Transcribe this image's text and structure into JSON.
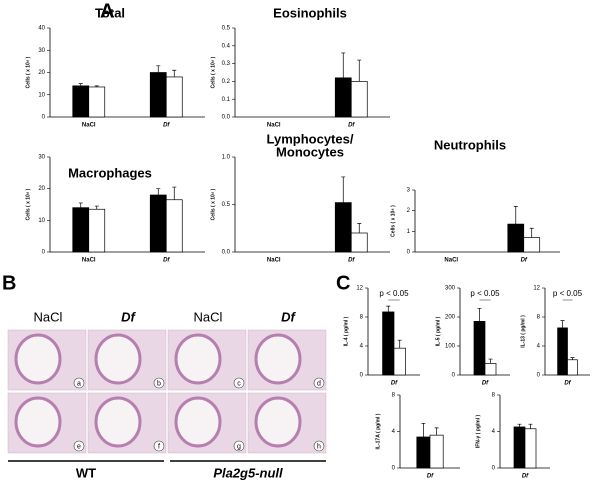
{
  "panel_labels": [
    "A",
    "B",
    "C"
  ],
  "micrographs": {
    "column_labels": [
      "NaCl",
      "Df",
      "NaCl",
      "Df"
    ],
    "letters": [
      "a",
      "b",
      "c",
      "d",
      "e",
      "f",
      "g",
      "h"
    ],
    "group_labels": [
      "WT",
      "Pla2g5-null"
    ]
  },
  "chart_data": [
    {
      "type": "bar",
      "title": [
        "Total"
      ],
      "ylabel": "Cells ( x 10⁴ )",
      "categories": [
        "NaCl",
        "Df"
      ],
      "ylim": [
        0,
        40
      ],
      "yticks": [
        0,
        10,
        20,
        30,
        40
      ],
      "series": [
        {
          "color": "#000000",
          "values": [
            14,
            20
          ],
          "errors": [
            1,
            3
          ]
        },
        {
          "color": "#ffffff",
          "values": [
            13.5,
            18
          ],
          "errors": [
            0.5,
            3
          ]
        }
      ]
    },
    {
      "type": "bar",
      "title": [
        "Eosinophils"
      ],
      "ylabel": "Cells ( x 10⁴ )",
      "categories": [
        "NaCl",
        "Df"
      ],
      "ylim": [
        0,
        0.5
      ],
      "yticks": [
        {
          "value": 0,
          "label": "0.0"
        },
        0.1,
        0.2,
        0.3,
        0.4,
        0.5
      ],
      "series": [
        {
          "color": "#000000",
          "values": [
            0,
            0.22
          ],
          "errors": [
            0,
            0.14
          ]
        },
        {
          "color": "#ffffff",
          "values": [
            0,
            0.2
          ],
          "errors": [
            0,
            0.12
          ]
        }
      ]
    },
    {
      "type": "bar",
      "title": [
        "Macrophages"
      ],
      "ylabel": "Cells ( x 10⁴ )",
      "categories": [
        "NaCl",
        "Df"
      ],
      "ylim": [
        0,
        30
      ],
      "yticks": [
        0,
        10,
        20,
        30
      ],
      "series": [
        {
          "color": "#000000",
          "values": [
            14,
            18
          ],
          "errors": [
            1.5,
            2
          ]
        },
        {
          "color": "#ffffff",
          "values": [
            13.5,
            16.5
          ],
          "errors": [
            1,
            4
          ]
        }
      ]
    },
    {
      "type": "bar",
      "title": [
        "Lymphocytes/",
        "Monocytes"
      ],
      "ylabel": "Cells ( x 10⁴ )",
      "categories": [
        "NaCl",
        "Df"
      ],
      "ylim": [
        0,
        1
      ],
      "yticks": [
        {
          "value": 0,
          "label": "0.0"
        },
        0.5,
        {
          "value": 1,
          "label": "1.0"
        }
      ],
      "series": [
        {
          "color": "#000000",
          "values": [
            0,
            0.52
          ],
          "errors": [
            0,
            0.27
          ]
        },
        {
          "color": "#ffffff",
          "values": [
            0,
            0.2
          ],
          "errors": [
            0,
            0.1
          ]
        }
      ]
    },
    {
      "type": "bar",
      "title": [
        "Neutrophils"
      ],
      "ylabel": "Cells ( x 10⁴ )",
      "categories": [
        "NaCl",
        "Df"
      ],
      "ylim": [
        0,
        3
      ],
      "yticks": [
        0,
        1,
        2,
        3
      ],
      "series": [
        {
          "color": "#000000",
          "values": [
            0,
            1.35
          ],
          "errors": [
            0,
            0.85
          ]
        },
        {
          "color": "#ffffff",
          "values": [
            0,
            0.7
          ],
          "errors": [
            0,
            0.45
          ]
        }
      ]
    },
    {
      "type": "bar",
      "ylabel": "IL-4 ( pg/ml )",
      "annotation": "p < 0.05",
      "categories": [
        "Df"
      ],
      "ylim": [
        0,
        12
      ],
      "yticks": [
        0,
        4,
        8,
        12
      ],
      "series": [
        {
          "color": "#000000",
          "values": [
            8.7
          ],
          "errors": [
            0.8
          ]
        },
        {
          "color": "#ffffff",
          "values": [
            3.7
          ],
          "errors": [
            1.1
          ]
        }
      ]
    },
    {
      "type": "bar",
      "ylabel": "IL-5 ( pg/ml )",
      "annotation": "p < 0.05",
      "categories": [
        "Df"
      ],
      "ylim": [
        0,
        300
      ],
      "yticks": [
        0,
        100,
        200,
        300
      ],
      "series": [
        {
          "color": "#000000",
          "values": [
            185
          ],
          "errors": [
            45
          ]
        },
        {
          "color": "#ffffff",
          "values": [
            40
          ],
          "errors": [
            15
          ]
        }
      ]
    },
    {
      "type": "bar",
      "ylabel": "IL-13 ( pg/ml )",
      "annotation": "p < 0.05",
      "categories": [
        "Df"
      ],
      "ylim": [
        0,
        12
      ],
      "yticks": [
        0,
        4,
        8,
        12
      ],
      "series": [
        {
          "color": "#000000",
          "values": [
            6.5
          ],
          "errors": [
            1
          ]
        },
        {
          "color": "#ffffff",
          "values": [
            2.1
          ],
          "errors": [
            0.3
          ]
        }
      ]
    },
    {
      "type": "bar",
      "ylabel": "IL-17A ( pg/ml )",
      "categories": [
        "Df"
      ],
      "ylim": [
        0,
        8
      ],
      "yticks": [
        0,
        4,
        8
      ],
      "series": [
        {
          "color": "#000000",
          "values": [
            3.4
          ],
          "errors": [
            1.5
          ]
        },
        {
          "color": "#ffffff",
          "values": [
            3.6
          ],
          "errors": [
            0.8
          ]
        }
      ]
    },
    {
      "type": "bar",
      "ylabel": "IFN-γ ( pg/ml )",
      "categories": [
        "Df"
      ],
      "ylim": [
        0,
        8
      ],
      "yticks": [
        0,
        4,
        8
      ],
      "series": [
        {
          "color": "#000000",
          "values": [
            4.5
          ],
          "errors": [
            0.3
          ]
        },
        {
          "color": "#ffffff",
          "values": [
            4.3
          ],
          "errors": [
            0.5
          ]
        }
      ]
    }
  ]
}
